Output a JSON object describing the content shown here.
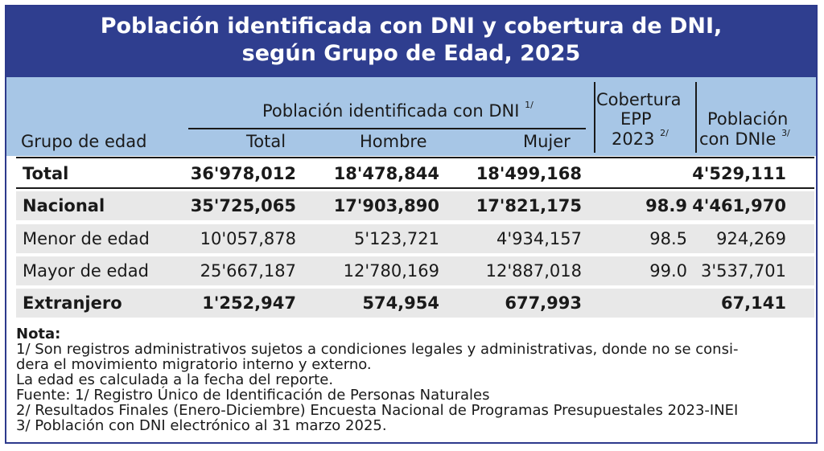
{
  "title": {
    "line1": "Población identificada con DNI y cobertura de DNI,",
    "line2": "según Grupo de Edad, 2025"
  },
  "header": {
    "group_label": "Población identificada con DNI",
    "group_sup": "1/",
    "grupo_edad": "Grupo de edad",
    "total": "Total",
    "hombre": "Hombre",
    "mujer": "Mujer",
    "cobertura_line1": "Cobertura",
    "cobertura_line2": "EPP",
    "cobertura_line3": "2023",
    "cobertura_sup": "2/",
    "poblacion_line1": "Población",
    "poblacion_line2": "con DNIe",
    "poblacion_sup": "3/"
  },
  "rows": [
    {
      "label": "Total",
      "total": "36'978,012",
      "hombre": "18'478,844",
      "mujer": "18'499,168",
      "cobertura": "",
      "dnie": "4'529,111"
    },
    {
      "label": "Nacional",
      "total": "35'725,065",
      "hombre": "17'903,890",
      "mujer": "17'821,175",
      "cobertura": "98.9",
      "dnie": "4'461,970"
    },
    {
      "label": "Menor de edad",
      "total": "10'057,878",
      "hombre": "5'123,721",
      "mujer": "4'934,157",
      "cobertura": "98.5",
      "dnie": "924,269"
    },
    {
      "label": "Mayor de edad",
      "total": "25'667,187",
      "hombre": "12'780,169",
      "mujer": "12'887,018",
      "cobertura": "99.0",
      "dnie": "3'537,701"
    },
    {
      "label": "Extranjero",
      "total": "1'252,947",
      "hombre": "574,954",
      "mujer": "677,993",
      "cobertura": "",
      "dnie": "67,141"
    }
  ],
  "notes": {
    "heading": "Nota:",
    "line1": "1/ Son registros administrativos sujetos a condiciones legales y administrativas, donde no se consi-",
    "line2": "dera el movimiento migratorio interno y externo.",
    "line3": "La edad es calculada a la fecha del reporte.",
    "line4": "Fuente: 1/ Registro Único de Identificación de Personas Naturales",
    "line5": "2/ Resultados Finales (Enero-Diciembre) Encuesta Nacional de Programas Presupuestales 2023-INEI",
    "line6": "3/ Población con DNI electrónico al 31 marzo 2025."
  }
}
